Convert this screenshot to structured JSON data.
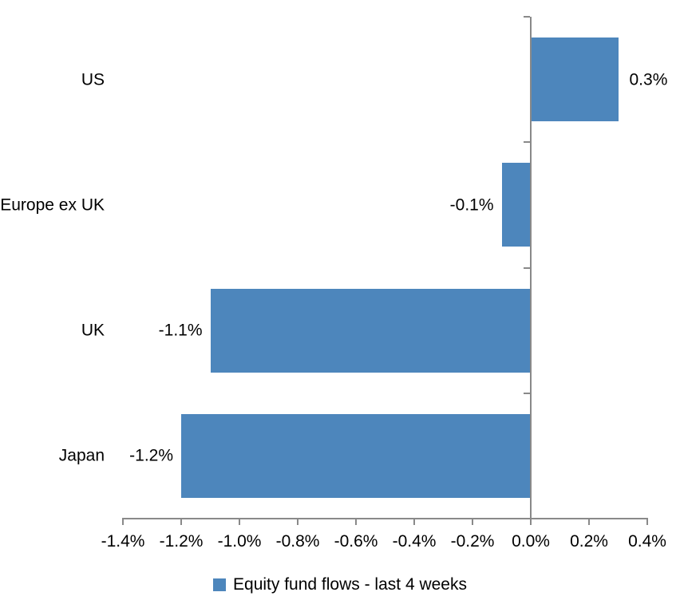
{
  "chart_data": {
    "type": "bar",
    "orientation": "horizontal",
    "title": "",
    "categories": [
      "US",
      "Europe ex UK",
      "UK",
      "Japan"
    ],
    "values": [
      0.3,
      -0.1,
      -1.1,
      -1.2
    ],
    "value_labels": [
      "0.3%",
      "-0.1%",
      "-1.1%",
      "-1.2%"
    ],
    "series_name": "Equity fund flows - last 4 weeks",
    "xlabel": "",
    "ylabel": "",
    "xlim": [
      -1.4,
      0.4
    ],
    "x_ticks": [
      -1.4,
      -1.2,
      -1.0,
      -0.8,
      -0.6,
      -0.4,
      -0.2,
      0.0,
      0.2,
      0.4
    ],
    "x_tick_labels": [
      "-1.4%",
      "-1.2%",
      "-1.0%",
      "-0.8%",
      "-0.6%",
      "-0.4%",
      "-0.2%",
      "0.0%",
      "0.2%",
      "0.4%"
    ],
    "grid": false,
    "legend_position": "bottom",
    "colors": {
      "bar": "#4d86bc",
      "axis": "#898989",
      "text": "#000000",
      "background": "#ffffff"
    }
  },
  "legend": {
    "label": "Equity fund flows - last 4 weeks"
  }
}
